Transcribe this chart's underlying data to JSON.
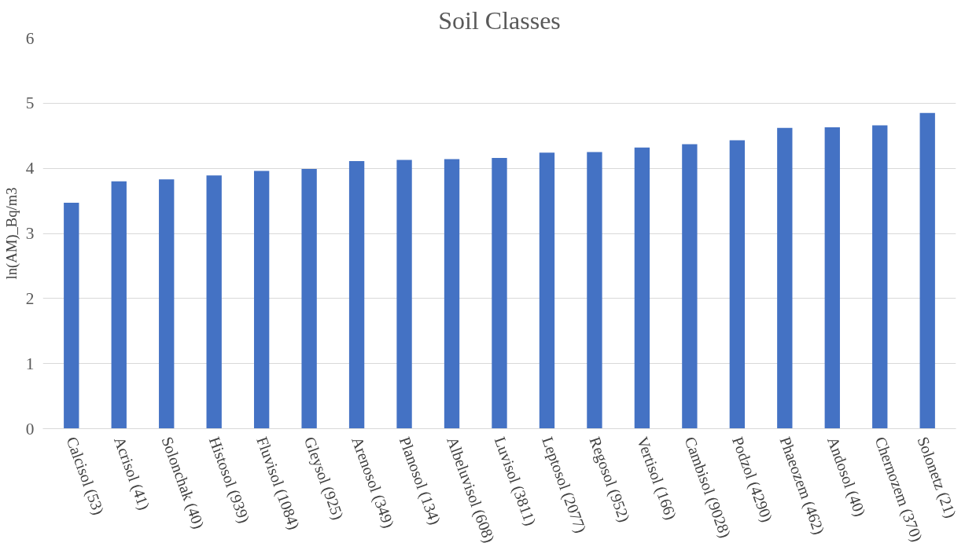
{
  "chart_data": {
    "type": "bar",
    "title": "Soil Classes",
    "ylabel": "ln(AM)_Bq/m3",
    "categories": [
      "Calcisol (53)",
      "Acrisol (41)",
      "Solonchak (40)",
      "Histosol (939)",
      "Fluvisol (1084)",
      "Gleysol (925)",
      "Arenosol (349)",
      "Planosol (134)",
      "Albeluvisol (608)",
      "Luvisol (3811)",
      "Leptosol (2077)",
      "Regosol (952)",
      "Vertisol (166)",
      "Cambisol (9028)",
      "Podzol (4290)",
      "Phaeozem (462)",
      "Andosol (40)",
      "Chernozem (370)",
      "Solonetz (21)"
    ],
    "values": [
      3.47,
      3.8,
      3.83,
      3.89,
      3.96,
      3.99,
      4.11,
      4.13,
      4.14,
      4.16,
      4.24,
      4.25,
      4.32,
      4.37,
      4.43,
      4.62,
      4.63,
      4.66,
      4.85
    ],
    "color": "#4472c4",
    "ylim": [
      0,
      6
    ],
    "yticks": [
      0,
      1,
      2,
      3,
      4,
      5,
      6
    ],
    "grid": "y"
  }
}
